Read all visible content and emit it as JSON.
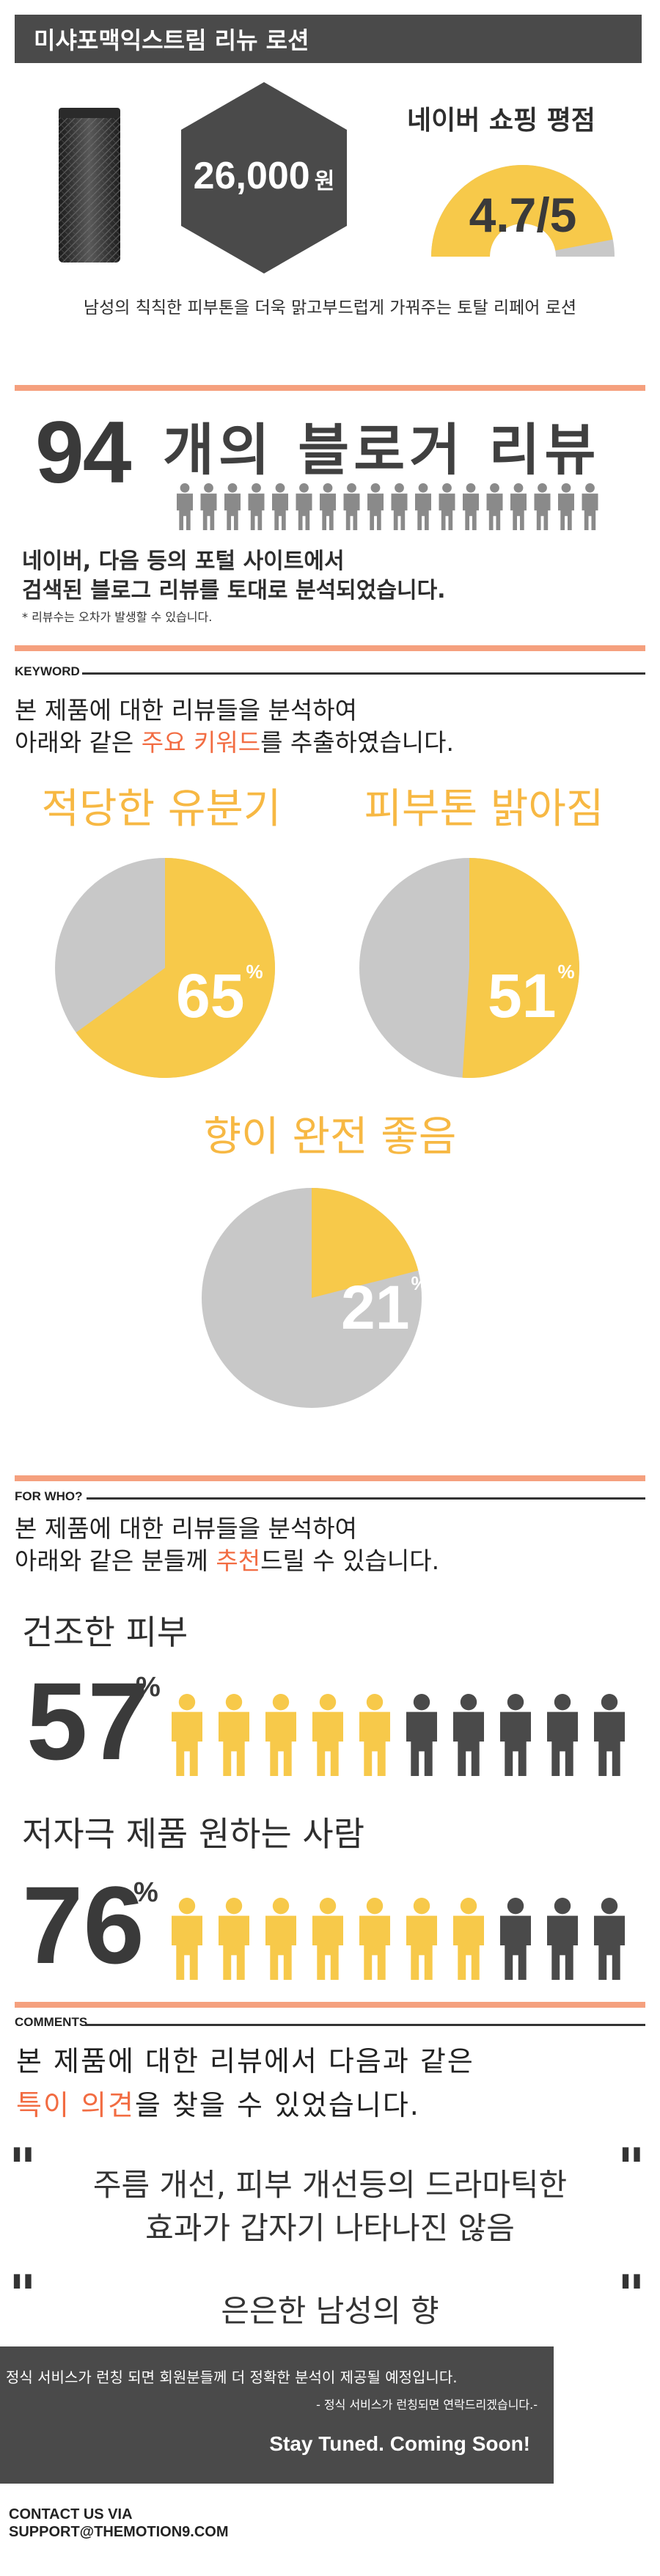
{
  "header": {
    "title": "미샤포맥익스트림 리뉴 로션",
    "price_value": "26,000",
    "price_unit": "원",
    "rating_label": "네이버 쇼핑 평점",
    "rating_value": "4.7/5",
    "rating_fraction": 0.94,
    "tagline": "남성의 칙칙한 피부톤을 더욱 맑고부드럽게 가꿔주는 토탈 리페어 로션"
  },
  "blog": {
    "count": "94",
    "label": "개의 블로거 리뷰",
    "people_icons": 18,
    "desc_line1": "네이버, 다음 등의 포털 사이트에서",
    "desc_line2": "검색된 블로그 리뷰를 토대로 분석되었습니다.",
    "note": "* 리뷰수는 오차가 발생할 수 있습니다."
  },
  "keyword": {
    "tag": "KEYWORD",
    "intro_line1": "본 제품에 대한 리뷰들을 분석하여",
    "intro_line2_pre": "아래와 같은 ",
    "intro_line2_hl": "주요 키워드",
    "intro_line2_post": "를 추출하였습니다."
  },
  "chart_data": {
    "type": "pie",
    "charts": [
      {
        "label": "적당한 유분기",
        "value": 65
      },
      {
        "label": "피부톤 밝아짐",
        "value": 51
      },
      {
        "label": "향이 완전 좋음",
        "value": 21
      }
    ],
    "percent_symbol": "%"
  },
  "for_who": {
    "tag": "FOR WHO?",
    "intro_line1": "본 제품에 대한 리뷰들을 분석하여",
    "intro_line2_pre": "아래와 같은 분들께 ",
    "intro_line2_hl": "추천",
    "intro_line2_post": "드릴 수 있습니다.",
    "groups": [
      {
        "label": "건조한 피부",
        "value": "57",
        "highlighted_icons": 5,
        "total_icons": 10
      },
      {
        "label": "저자극 제품 원하는 사람",
        "value": "76",
        "highlighted_icons": 7,
        "total_icons": 10
      }
    ],
    "percent_symbol": "%"
  },
  "comments": {
    "tag": "COMMENTS",
    "intro_line1": "본 제품에 대한 리뷰에서 다음과 같은",
    "intro_line2_hl": "특이 의견",
    "intro_line2_post": "을 찾을 수 있었습니다.",
    "quote1_line1": "주름 개선, 피부 개선등의 드라마틱한",
    "quote1_line2": "효과가 갑자기 나타나진 않음",
    "quote2": "은은한 남성의 향",
    "quote_mark": "\""
  },
  "footer": {
    "line1": "정식 서비스가 런칭 되면 회원분들께 더 정확한 분석이 제공될 예정입니다.",
    "line2": "- 정식 서비스가 런칭되면 연락드리겠습니다.-",
    "stay_tuned": "Stay Tuned. Coming Soon!",
    "contact_line1": "CONTACT US VIA",
    "contact_line2": "SUPPORT@THEMOTION9.COM"
  },
  "colors": {
    "accent_yellow": "#f7c94a",
    "pie_gray": "#c8c8c8",
    "highlight_orange": "#f26c42",
    "rule_orange": "#f5a07e",
    "dark": "#3a3a3a",
    "icon_dark": "#4a4a4a",
    "icon_gray": "#8a8a8a"
  }
}
